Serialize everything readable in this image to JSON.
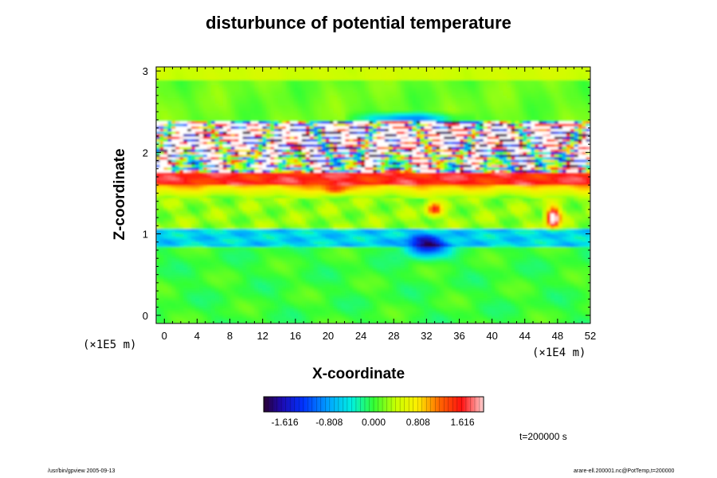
{
  "chart_data": {
    "type": "heatmap",
    "title": "disturbunce of potential temperature",
    "xlabel": "X-coordinate",
    "ylabel": "Z-coordinate",
    "x_unit": "(×1E4 m)",
    "z_unit": "(×1E5 m)",
    "xlim": [
      -1,
      52
    ],
    "ylim": [
      -0.1,
      3.05
    ],
    "x_ticks": [
      "0",
      "4",
      "8",
      "12",
      "16",
      "20",
      "24",
      "28",
      "32",
      "36",
      "40",
      "44",
      "48",
      "52"
    ],
    "y_ticks": [
      "0",
      "1",
      "2",
      "3"
    ],
    "colorbar": {
      "range": [
        -2.0,
        2.0
      ],
      "tick_labels": [
        "-1.616",
        "-0.808",
        "0.000",
        "0.808",
        "1.616"
      ],
      "tick_values": [
        -1.616,
        -0.808,
        0.0,
        0.808,
        1.616
      ],
      "colormap": "rainbow (purple-blue-cyan-green-yellow-red-pink)",
      "out_of_range_color": "#ffffff"
    },
    "description_of_field": [
      {
        "z_range": [
          2.9,
          3.05
        ],
        "value": 0.45
      },
      {
        "z_range": [
          2.35,
          2.9
        ],
        "value": 0.2
      },
      {
        "z_range": [
          1.75,
          2.3
        ],
        "value": "strong multicolored banding, saturated (white)"
      },
      {
        "z_range": [
          1.6,
          1.75
        ],
        "value": 1.5
      },
      {
        "z_range": [
          1.1,
          1.6
        ],
        "value": 0.3
      },
      {
        "z_range": [
          0.85,
          1.05
        ],
        "value": -0.5
      },
      {
        "z_range": [
          -0.1,
          0.85
        ],
        "value": 0.0
      }
    ]
  },
  "annotation": {
    "time": "t=200000 s",
    "footer_left": "/usr/bin/gpview 2005-09-13",
    "footer_right": "arare-ell.200001.nc@PotTemp,t=200000"
  }
}
